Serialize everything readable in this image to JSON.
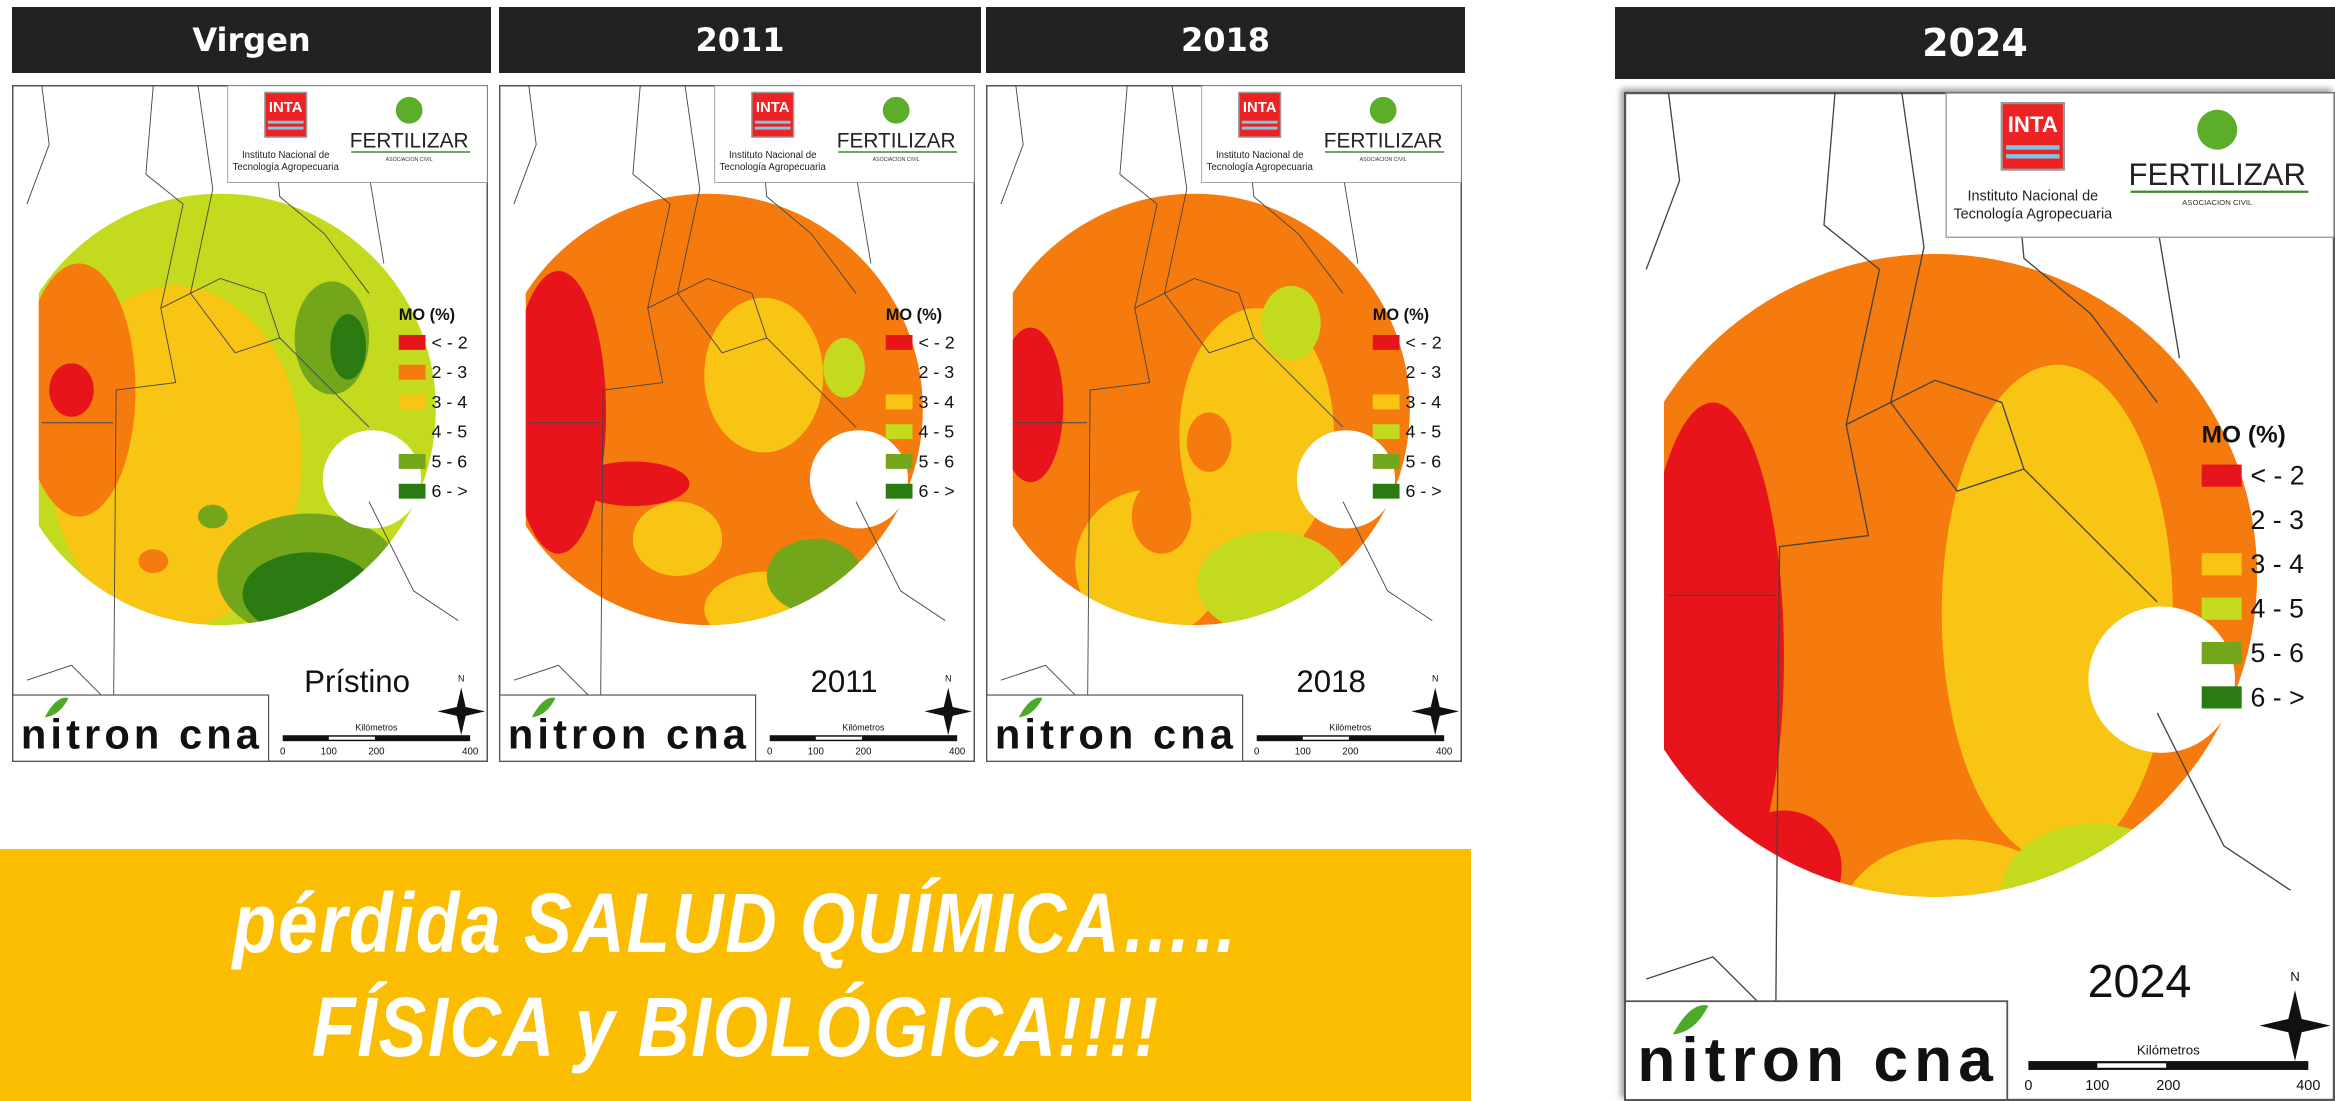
{
  "panels": [
    {
      "header": "Virgen",
      "label": "Prístino"
    },
    {
      "header": "2011",
      "label": "2011"
    },
    {
      "header": "2018",
      "label": "2018"
    },
    {
      "header": "2024",
      "label": "2024"
    }
  ],
  "map_common": {
    "inta": "INTA",
    "institute": [
      "Instituto Nacional de",
      "Tecnología Agropecuaria"
    ],
    "fertilizar": "FERTILIZAR",
    "asociacion": "ASOCIACION CIVIL",
    "legend_title": "MO (%)",
    "legend": [
      {
        "label": "< - 2",
        "color": "#e8141b"
      },
      {
        "label": "2 - 3",
        "color": "#f57b0e"
      },
      {
        "label": "3 - 4",
        "color": "#f8c514"
      },
      {
        "label": "4 - 5",
        "color": "#c3da1e"
      },
      {
        "label": "5 - 6",
        "color": "#73a61a"
      },
      {
        "label": "6 - >",
        "color": "#2c7a12"
      }
    ],
    "scale_title": "Kilómetros",
    "scale_ticks": [
      "0",
      "100",
      "200",
      "400"
    ],
    "brand": "nitron cna",
    "north": "N"
  },
  "banner": [
    "pérdida SALUD QUÍMICA…..",
    "FÍSICA y BIOLÓGICA!!!!"
  ]
}
